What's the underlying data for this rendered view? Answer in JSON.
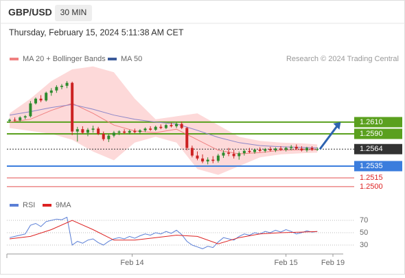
{
  "header": {
    "symbol": "GBP/USD",
    "interval": "30 MIN",
    "timestamp": "Thursday, February 15, 2024 5:11:38 AM CET"
  },
  "chart_data": [
    {
      "type": "candlestick",
      "credit": "Research © 2024 Trading Central",
      "xlim": [
        0,
        62
      ],
      "ylim": [
        1.248,
        1.271
      ],
      "up_color": "#2e8b2e",
      "down_color": "#cc2222",
      "ohlc": [
        [
          1.2612,
          1.2616,
          1.2609,
          1.2614
        ],
        [
          1.2614,
          1.2618,
          1.2611,
          1.2613
        ],
        [
          1.2613,
          1.262,
          1.2611,
          1.2618
        ],
        [
          1.2618,
          1.2622,
          1.2615,
          1.262
        ],
        [
          1.262,
          1.2646,
          1.2618,
          1.2642
        ],
        [
          1.2642,
          1.2652,
          1.264,
          1.265
        ],
        [
          1.265,
          1.2656,
          1.2644,
          1.2647
        ],
        [
          1.2647,
          1.2662,
          1.2645,
          1.266
        ],
        [
          1.266,
          1.2668,
          1.2655,
          1.2664
        ],
        [
          1.2664,
          1.2673,
          1.266,
          1.267
        ],
        [
          1.267,
          1.2675,
          1.2666,
          1.2672
        ],
        [
          1.2672,
          1.268,
          1.2668,
          1.2677
        ],
        [
          1.2677,
          1.2679,
          1.2588,
          1.2594
        ],
        [
          1.2594,
          1.2602,
          1.2577,
          1.2598
        ],
        [
          1.2598,
          1.2603,
          1.259,
          1.2592
        ],
        [
          1.2592,
          1.26,
          1.2586,
          1.2597
        ],
        [
          1.2597,
          1.2604,
          1.2592,
          1.2599
        ],
        [
          1.2599,
          1.2602,
          1.2588,
          1.259
        ],
        [
          1.259,
          1.2594,
          1.2578,
          1.2581
        ],
        [
          1.2581,
          1.259,
          1.2576,
          1.2587
        ],
        [
          1.2587,
          1.2595,
          1.2584,
          1.2592
        ],
        [
          1.2592,
          1.2596,
          1.2588,
          1.2594
        ],
        [
          1.2594,
          1.2598,
          1.259,
          1.2592
        ],
        [
          1.2592,
          1.2597,
          1.2589,
          1.2595
        ],
        [
          1.2595,
          1.2599,
          1.2591,
          1.2593
        ],
        [
          1.2593,
          1.2598,
          1.259,
          1.2596
        ],
        [
          1.2596,
          1.2601,
          1.2593,
          1.2599
        ],
        [
          1.2599,
          1.2603,
          1.2595,
          1.2597
        ],
        [
          1.2597,
          1.2604,
          1.2595,
          1.2602
        ],
        [
          1.2602,
          1.2606,
          1.2598,
          1.26
        ],
        [
          1.26,
          1.2607,
          1.2598,
          1.2605
        ],
        [
          1.2605,
          1.2609,
          1.2601,
          1.2603
        ],
        [
          1.2603,
          1.261,
          1.26,
          1.2607
        ],
        [
          1.2607,
          1.2611,
          1.2598,
          1.26
        ],
        [
          1.26,
          1.2602,
          1.2562,
          1.2566
        ],
        [
          1.2566,
          1.257,
          1.255,
          1.2553
        ],
        [
          1.2553,
          1.256,
          1.2545,
          1.2548
        ],
        [
          1.2548,
          1.2555,
          1.254,
          1.2543
        ],
        [
          1.2543,
          1.255,
          1.2538,
          1.2546
        ],
        [
          1.2546,
          1.2552,
          1.254,
          1.2544
        ],
        [
          1.2544,
          1.2556,
          1.2541,
          1.2553
        ],
        [
          1.2553,
          1.2562,
          1.2549,
          1.2558
        ],
        [
          1.2558,
          1.2566,
          1.2552,
          1.2556
        ],
        [
          1.2556,
          1.2563,
          1.2548,
          1.2552
        ],
        [
          1.2552,
          1.256,
          1.2546,
          1.2557
        ],
        [
          1.2557,
          1.2564,
          1.2553,
          1.2561
        ],
        [
          1.2561,
          1.2566,
          1.2557,
          1.2559
        ],
        [
          1.2559,
          1.2565,
          1.2556,
          1.2563
        ],
        [
          1.2563,
          1.2567,
          1.2559,
          1.2561
        ],
        [
          1.2561,
          1.2566,
          1.2558,
          1.2564
        ],
        [
          1.2564,
          1.2568,
          1.256,
          1.2562
        ],
        [
          1.2562,
          1.2567,
          1.2559,
          1.2565
        ],
        [
          1.2565,
          1.2569,
          1.2561,
          1.2563
        ],
        [
          1.2563,
          1.2568,
          1.256,
          1.2566
        ],
        [
          1.2566,
          1.2571,
          1.2562,
          1.2568
        ],
        [
          1.2568,
          1.2572,
          1.2563,
          1.2565
        ],
        [
          1.2565,
          1.2569,
          1.256,
          1.2562
        ],
        [
          1.2562,
          1.2568,
          1.2559,
          1.2566
        ],
        [
          1.2566,
          1.2569,
          1.2561,
          1.2563
        ],
        [
          1.2563,
          1.2567,
          1.2561,
          1.2564
        ]
      ],
      "indicator_x": [
        0,
        4,
        8,
        12,
        16,
        20,
        24,
        28,
        32,
        36,
        40,
        44,
        48,
        52,
        56,
        59
      ],
      "band": {
        "color": "#fdd9d9",
        "upper": [
          1.2625,
          1.265,
          1.268,
          1.27,
          1.2705,
          1.2695,
          1.265,
          1.2615,
          1.262,
          1.2625,
          1.2605,
          1.2585,
          1.2578,
          1.2575,
          1.2574,
          1.2572
        ],
        "lower": [
          1.26,
          1.2595,
          1.259,
          1.258,
          1.256,
          1.2545,
          1.2575,
          1.2585,
          1.2575,
          1.253,
          1.252,
          1.2535,
          1.255,
          1.2555,
          1.2557,
          1.2558
        ]
      },
      "series": [
        {
          "name": "MA 20 + Bollinger Bands",
          "color": "#f08080",
          "values": [
            1.261,
            1.2615,
            1.263,
            1.2642,
            1.2625,
            1.2605,
            1.2595,
            1.2592,
            1.2598,
            1.258,
            1.2562,
            1.2556,
            1.2558,
            1.2562,
            1.2563,
            1.2563
          ]
        },
        {
          "name": "MA 50",
          "color": "#3b5a9a",
          "line_color": "#8c86c8",
          "values": [
            1.2622,
            1.2628,
            1.2635,
            1.264,
            1.2632,
            1.2622,
            1.2615,
            1.261,
            1.2607,
            1.2596,
            1.2584,
            1.2575,
            1.257,
            1.2568,
            1.2567,
            1.2566
          ]
        }
      ],
      "levels": [
        {
          "value": 1.261,
          "label": "1.2610",
          "color": "#5aa01e",
          "box": true
        },
        {
          "value": 1.259,
          "label": "1.2590",
          "color": "#5aa01e",
          "box": true
        },
        {
          "value": 1.2564,
          "label": "1.2564",
          "color": "#333333",
          "box": true,
          "dotted": true
        },
        {
          "value": 1.2535,
          "label": "1.2535",
          "color": "#3b7ddd",
          "box": true
        },
        {
          "value": 1.2515,
          "label": "1.2515",
          "color": "#dd2222",
          "box": false
        },
        {
          "value": 1.25,
          "label": "1.2500",
          "color": "#dd2222",
          "box": false
        }
      ],
      "arrow": {
        "from": [
          59.5,
          1.2564
        ],
        "to": [
          63.5,
          1.261
        ],
        "color": "#2e63b0"
      }
    },
    {
      "type": "line",
      "xlim": [
        0,
        62
      ],
      "ylim": [
        20,
        80
      ],
      "yticks": [
        30,
        50,
        70
      ],
      "xticks": [
        {
          "value": 23.5,
          "label": "Feb 14"
        },
        {
          "value": 53,
          "label": "Feb 15"
        },
        {
          "value": 62,
          "label": "Feb 19"
        }
      ],
      "series": [
        {
          "name": "RSI",
          "color": "#5b7fd6",
          "values": [
            42,
            44,
            46,
            48,
            62,
            65,
            60,
            68,
            70,
            72,
            71,
            75,
            30,
            36,
            33,
            38,
            40,
            34,
            30,
            36,
            40,
            42,
            40,
            44,
            41,
            45,
            48,
            46,
            50,
            48,
            52,
            49,
            54,
            47,
            36,
            30,
            27,
            24,
            28,
            26,
            35,
            42,
            40,
            38,
            44,
            48,
            46,
            50,
            48,
            52,
            50,
            54,
            51,
            55,
            52,
            48,
            50,
            53,
            51,
            52
          ]
        },
        {
          "name": "9MA",
          "color": "#dd2222",
          "x": [
            0,
            4,
            8,
            12,
            16,
            20,
            24,
            28,
            32,
            36,
            40,
            44,
            48,
            52,
            56,
            59
          ],
          "values": [
            40,
            44,
            55,
            70,
            55,
            38,
            38,
            42,
            46,
            44,
            32,
            42,
            48,
            50,
            51,
            52
          ]
        }
      ]
    }
  ]
}
